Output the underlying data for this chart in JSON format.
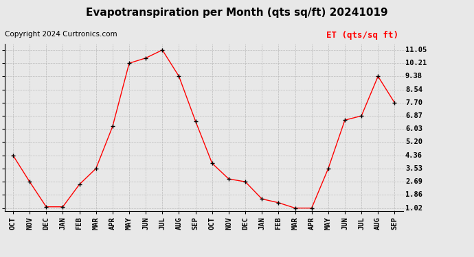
{
  "title": "Evapotranspiration per Month (qts sq/ft) 20241019",
  "copyright": "Copyright 2024 Curtronics.com",
  "legend_label": "ET (qts/sq ft)",
  "months": [
    "OCT",
    "NOV",
    "DEC",
    "JAN",
    "FEB",
    "MAR",
    "APR",
    "MAY",
    "JUN",
    "JUL",
    "AUG",
    "SEP",
    "OCT",
    "NOV",
    "DEC",
    "JAN",
    "FEB",
    "MAR",
    "APR",
    "MAY",
    "JUN",
    "JUL",
    "AUG",
    "SEP"
  ],
  "values": [
    4.36,
    2.69,
    1.1,
    1.1,
    2.52,
    3.53,
    6.2,
    10.21,
    10.54,
    11.05,
    9.38,
    6.53,
    3.86,
    2.87,
    2.69,
    1.6,
    1.36,
    1.02,
    1.02,
    3.53,
    6.6,
    6.87,
    9.38,
    7.7
  ],
  "ytick_labels": [
    "1.02",
    "1.86",
    "2.69",
    "3.53",
    "4.36",
    "5.20",
    "6.03",
    "6.87",
    "7.70",
    "8.54",
    "9.38",
    "10.21",
    "11.05"
  ],
  "ytick_vals": [
    1.02,
    1.86,
    2.69,
    3.53,
    4.36,
    5.2,
    6.03,
    6.87,
    7.7,
    8.54,
    9.38,
    10.21,
    11.05
  ],
  "ylim": [
    0.85,
    11.45
  ],
  "line_color": "#ff0000",
  "marker_color": "#000000",
  "grid_color": "#bbbbbb",
  "bg_color": "#e8e8e8",
  "title_fontsize": 11,
  "copyright_fontsize": 7.5,
  "legend_fontsize": 9,
  "tick_fontsize": 7.5,
  "xtick_fontsize": 7.5
}
